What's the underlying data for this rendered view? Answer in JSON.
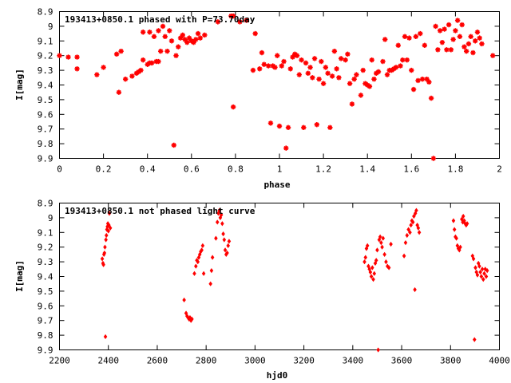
{
  "chart_data": [
    {
      "type": "scatter",
      "title": "193413+0850.1 phased with P=73.70day",
      "xlabel": "phase",
      "ylabel": "I[mag]",
      "xlim": [
        0,
        2
      ],
      "ylim": [
        8.9,
        9.9
      ],
      "y_inverted": true,
      "x_ticks": [
        "0",
        "0.2",
        "0.4",
        "0.6",
        "0.8",
        "1",
        "1.2",
        "1.4",
        "1.6",
        "1.8",
        "2"
      ],
      "y_ticks": [
        "8.9",
        "9",
        "9.1",
        "9.2",
        "9.3",
        "9.4",
        "9.5",
        "9.6",
        "9.7",
        "9.8",
        "9.9"
      ],
      "marker": "star",
      "color": "#ff0000",
      "points": [
        [
          0.0,
          9.2
        ],
        [
          0.04,
          9.21
        ],
        [
          0.08,
          9.21
        ],
        [
          0.08,
          9.29
        ],
        [
          0.17,
          9.33
        ],
        [
          0.2,
          9.28
        ],
        [
          0.26,
          9.19
        ],
        [
          0.27,
          9.45
        ],
        [
          0.28,
          9.17
        ],
        [
          0.3,
          9.36
        ],
        [
          0.33,
          9.34
        ],
        [
          0.35,
          9.32
        ],
        [
          0.36,
          9.31
        ],
        [
          0.37,
          9.3
        ],
        [
          0.38,
          9.23
        ],
        [
          0.38,
          9.04
        ],
        [
          0.4,
          9.26
        ],
        [
          0.41,
          9.04
        ],
        [
          0.41,
          9.25
        ],
        [
          0.42,
          9.25
        ],
        [
          0.43,
          9.07
        ],
        [
          0.44,
          9.24
        ],
        [
          0.45,
          9.24
        ],
        [
          0.45,
          9.03
        ],
        [
          0.46,
          9.17
        ],
        [
          0.47,
          9.0
        ],
        [
          0.48,
          9.07
        ],
        [
          0.49,
          9.17
        ],
        [
          0.5,
          9.03
        ],
        [
          0.51,
          9.1
        ],
        [
          0.52,
          9.81
        ],
        [
          0.53,
          9.2
        ],
        [
          0.54,
          9.14
        ],
        [
          0.55,
          9.08
        ],
        [
          0.56,
          9.06
        ],
        [
          0.57,
          9.09
        ],
        [
          0.58,
          9.11
        ],
        [
          0.59,
          9.08
        ],
        [
          0.6,
          9.1
        ],
        [
          0.61,
          9.11
        ],
        [
          0.62,
          9.09
        ],
        [
          0.63,
          9.05
        ],
        [
          0.64,
          9.08
        ],
        [
          0.66,
          9.06
        ],
        [
          0.72,
          8.97
        ],
        [
          0.78,
          8.93
        ],
        [
          0.79,
          8.93
        ],
        [
          0.79,
          9.55
        ],
        [
          0.82,
          8.97
        ],
        [
          0.85,
          8.96
        ],
        [
          0.88,
          9.3
        ],
        [
          0.89,
          9.05
        ],
        [
          0.91,
          9.29
        ],
        [
          0.92,
          9.18
        ],
        [
          0.93,
          9.26
        ],
        [
          0.95,
          9.27
        ],
        [
          0.96,
          9.66
        ],
        [
          0.97,
          9.27
        ],
        [
          0.98,
          9.28
        ],
        [
          0.99,
          9.2
        ],
        [
          1.0,
          9.68
        ],
        [
          1.01,
          9.27
        ],
        [
          1.02,
          9.24
        ],
        [
          1.03,
          9.83
        ],
        [
          1.04,
          9.69
        ],
        [
          1.05,
          9.29
        ],
        [
          1.06,
          9.21
        ],
        [
          1.07,
          9.19
        ],
        [
          1.08,
          9.2
        ],
        [
          1.09,
          9.33
        ],
        [
          1.1,
          9.23
        ],
        [
          1.11,
          9.69
        ],
        [
          1.12,
          9.25
        ],
        [
          1.13,
          9.32
        ],
        [
          1.14,
          9.28
        ],
        [
          1.15,
          9.35
        ],
        [
          1.16,
          9.22
        ],
        [
          1.17,
          9.67
        ],
        [
          1.18,
          9.36
        ],
        [
          1.19,
          9.24
        ],
        [
          1.2,
          9.39
        ],
        [
          1.21,
          9.28
        ],
        [
          1.22,
          9.32
        ],
        [
          1.23,
          9.69
        ],
        [
          1.24,
          9.34
        ],
        [
          1.25,
          9.17
        ],
        [
          1.26,
          9.29
        ],
        [
          1.27,
          9.35
        ],
        [
          1.28,
          9.22
        ],
        [
          1.3,
          9.23
        ],
        [
          1.31,
          9.19
        ],
        [
          1.32,
          9.39
        ],
        [
          1.33,
          9.53
        ],
        [
          1.34,
          9.36
        ],
        [
          1.35,
          9.33
        ],
        [
          1.37,
          9.47
        ],
        [
          1.38,
          9.3
        ],
        [
          1.39,
          9.39
        ],
        [
          1.4,
          9.4
        ],
        [
          1.41,
          9.41
        ],
        [
          1.42,
          9.23
        ],
        [
          1.43,
          9.36
        ],
        [
          1.44,
          9.32
        ],
        [
          1.45,
          9.31
        ],
        [
          1.47,
          9.24
        ],
        [
          1.48,
          9.09
        ],
        [
          1.49,
          9.33
        ],
        [
          1.5,
          9.3
        ],
        [
          1.51,
          9.3
        ],
        [
          1.52,
          9.29
        ],
        [
          1.53,
          9.28
        ],
        [
          1.54,
          9.13
        ],
        [
          1.55,
          9.27
        ],
        [
          1.56,
          9.23
        ],
        [
          1.57,
          9.07
        ],
        [
          1.58,
          9.23
        ],
        [
          1.59,
          9.08
        ],
        [
          1.6,
          9.3
        ],
        [
          1.61,
          9.43
        ],
        [
          1.62,
          9.07
        ],
        [
          1.63,
          9.37
        ],
        [
          1.64,
          9.05
        ],
        [
          1.65,
          9.36
        ],
        [
          1.66,
          9.13
        ],
        [
          1.67,
          9.36
        ],
        [
          1.68,
          9.38
        ],
        [
          1.69,
          9.49
        ],
        [
          1.7,
          9.9
        ],
        [
          1.71,
          9.0
        ],
        [
          1.72,
          9.16
        ],
        [
          1.73,
          9.03
        ],
        [
          1.74,
          9.11
        ],
        [
          1.75,
          9.02
        ],
        [
          1.76,
          9.16
        ],
        [
          1.77,
          8.99
        ],
        [
          1.78,
          9.16
        ],
        [
          1.79,
          9.09
        ],
        [
          1.8,
          9.03
        ],
        [
          1.81,
          8.96
        ],
        [
          1.82,
          9.07
        ],
        [
          1.83,
          8.99
        ],
        [
          1.84,
          9.14
        ],
        [
          1.85,
          9.17
        ],
        [
          1.86,
          9.12
        ],
        [
          1.87,
          9.07
        ],
        [
          1.88,
          9.18
        ],
        [
          1.89,
          9.1
        ],
        [
          1.9,
          9.04
        ],
        [
          1.91,
          9.08
        ],
        [
          1.92,
          9.12
        ],
        [
          1.97,
          9.2
        ]
      ]
    },
    {
      "type": "scatter",
      "title": "193413+0850.1 not phased light curve",
      "xlabel": "hjd0",
      "ylabel": "I[mag]",
      "xlim": [
        2200,
        4000
      ],
      "ylim": [
        8.9,
        9.9
      ],
      "y_inverted": true,
      "x_ticks": [
        "2200",
        "2400",
        "2600",
        "2800",
        "3000",
        "3200",
        "3400",
        "3600",
        "3800",
        "4000"
      ],
      "y_ticks": [
        "8.9",
        "9",
        "9.1",
        "9.2",
        "9.3",
        "9.4",
        "9.5",
        "9.6",
        "9.7",
        "9.8",
        "9.9"
      ],
      "marker": "diamond",
      "color": "#ff0000",
      "points": [
        [
          2375,
          9.28
        ],
        [
          2378,
          9.31
        ],
        [
          2380,
          9.32
        ],
        [
          2382,
          9.25
        ],
        [
          2384,
          9.24
        ],
        [
          2386,
          9.2
        ],
        [
          2388,
          9.81
        ],
        [
          2390,
          9.15
        ],
        [
          2392,
          9.12
        ],
        [
          2394,
          9.08
        ],
        [
          2396,
          9.06
        ],
        [
          2398,
          9.04
        ],
        [
          2400,
          9.09
        ],
        [
          2402,
          9.05
        ],
        [
          2404,
          8.97
        ],
        [
          2408,
          9.07
        ],
        [
          2710,
          9.56
        ],
        [
          2718,
          9.65
        ],
        [
          2722,
          9.67
        ],
        [
          2726,
          9.68
        ],
        [
          2730,
          9.69
        ],
        [
          2734,
          9.68
        ],
        [
          2738,
          9.7
        ],
        [
          2742,
          9.69
        ],
        [
          2752,
          9.38
        ],
        [
          2758,
          9.33
        ],
        [
          2762,
          9.29
        ],
        [
          2766,
          9.3
        ],
        [
          2770,
          9.27
        ],
        [
          2774,
          9.25
        ],
        [
          2778,
          9.23
        ],
        [
          2782,
          9.22
        ],
        [
          2786,
          9.19
        ],
        [
          2790,
          9.38
        ],
        [
          2818,
          9.45
        ],
        [
          2822,
          9.36
        ],
        [
          2826,
          9.27
        ],
        [
          2840,
          9.14
        ],
        [
          2846,
          9.03
        ],
        [
          2850,
          8.97
        ],
        [
          2854,
          8.95
        ],
        [
          2858,
          9.0
        ],
        [
          2862,
          8.98
        ],
        [
          2866,
          9.04
        ],
        [
          2870,
          9.11
        ],
        [
          2874,
          9.15
        ],
        [
          2878,
          9.22
        ],
        [
          2882,
          9.25
        ],
        [
          2886,
          9.24
        ],
        [
          2890,
          9.19
        ],
        [
          2894,
          9.16
        ],
        [
          3448,
          9.3
        ],
        [
          3452,
          9.27
        ],
        [
          3456,
          9.21
        ],
        [
          3460,
          9.19
        ],
        [
          3464,
          9.33
        ],
        [
          3468,
          9.35
        ],
        [
          3472,
          9.37
        ],
        [
          3476,
          9.4
        ],
        [
          3480,
          9.34
        ],
        [
          3484,
          9.42
        ],
        [
          3488,
          9.38
        ],
        [
          3492,
          9.31
        ],
        [
          3496,
          9.29
        ],
        [
          3500,
          9.22
        ],
        [
          3504,
          9.9
        ],
        [
          3508,
          9.15
        ],
        [
          3512,
          9.13
        ],
        [
          3516,
          9.17
        ],
        [
          3520,
          9.2
        ],
        [
          3524,
          9.14
        ],
        [
          3530,
          9.25
        ],
        [
          3536,
          9.3
        ],
        [
          3542,
          9.33
        ],
        [
          3548,
          9.34
        ],
        [
          3556,
          9.18
        ],
        [
          3610,
          9.26
        ],
        [
          3616,
          9.17
        ],
        [
          3622,
          9.12
        ],
        [
          3628,
          9.08
        ],
        [
          3634,
          9.1
        ],
        [
          3638,
          9.05
        ],
        [
          3642,
          9.02
        ],
        [
          3646,
          9.03
        ],
        [
          3650,
          8.99
        ],
        [
          3654,
          9.49
        ],
        [
          3656,
          8.97
        ],
        [
          3660,
          8.95
        ],
        [
          3664,
          9.05
        ],
        [
          3668,
          9.07
        ],
        [
          3672,
          9.1
        ],
        [
          3812,
          9.02
        ],
        [
          3816,
          9.08
        ],
        [
          3820,
          9.13
        ],
        [
          3824,
          9.14
        ],
        [
          3828,
          9.19
        ],
        [
          3832,
          9.21
        ],
        [
          3836,
          9.22
        ],
        [
          3840,
          9.2
        ],
        [
          3846,
          9.01
        ],
        [
          3850,
          9.03
        ],
        [
          3852,
          8.99
        ],
        [
          3856,
          9.02
        ],
        [
          3860,
          9.04
        ],
        [
          3864,
          9.05
        ],
        [
          3868,
          9.04
        ],
        [
          3890,
          9.26
        ],
        [
          3894,
          9.28
        ],
        [
          3898,
          9.83
        ],
        [
          3902,
          9.34
        ],
        [
          3906,
          9.37
        ],
        [
          3910,
          9.39
        ],
        [
          3914,
          9.31
        ],
        [
          3918,
          9.33
        ],
        [
          3922,
          9.37
        ],
        [
          3926,
          9.4
        ],
        [
          3930,
          9.35
        ],
        [
          3934,
          9.42
        ],
        [
          3938,
          9.38
        ],
        [
          3942,
          9.35
        ],
        [
          3946,
          9.4
        ],
        [
          3950,
          9.36
        ]
      ]
    }
  ]
}
